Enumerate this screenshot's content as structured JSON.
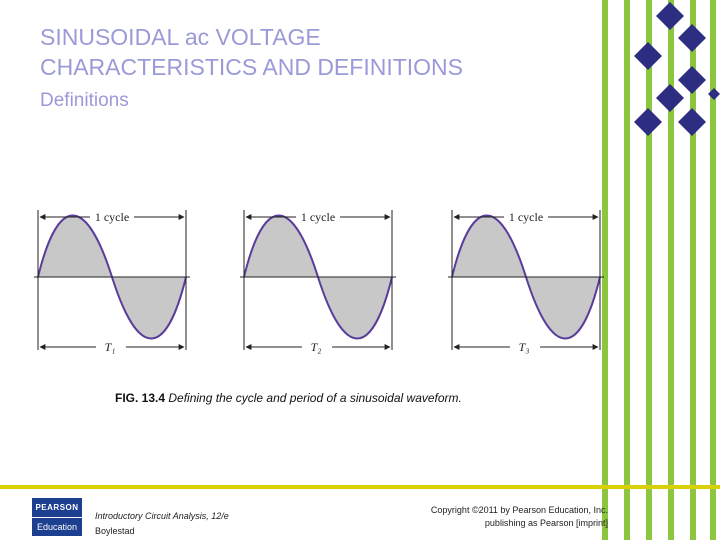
{
  "slide": {
    "title_line1": "SINUSOIDAL ac VOLTAGE",
    "title_line2": "CHARACTERISTICS AND DEFINITIONS",
    "subtitle": "Definitions"
  },
  "figure": {
    "panels": [
      {
        "cycle_label": "1 cycle",
        "period_label": "T₁"
      },
      {
        "cycle_label": "1 cycle",
        "period_label": "T₂"
      },
      {
        "cycle_label": "1 cycle",
        "period_label": "T₃"
      }
    ],
    "caption_prefix": "FIG. 13.4",
    "caption_text": "Defining the cycle and period of a sinusoidal waveform."
  },
  "footer": {
    "logo_top": "PEARSON",
    "logo_bottom": "Education",
    "book_title": "Introductory Circuit Analysis, 12/e",
    "book_author": "Boylestad",
    "copyright_line1": "Copyright ©2011 by Pearson Education, Inc.",
    "copyright_line2": "publishing as Pearson [imprint]"
  },
  "colors": {
    "title": "#9a9ad8",
    "stripe_green": "#8cc63f",
    "diamond_navy": "#2d2d82",
    "waveform_fill": "#c8c8c8",
    "footer_bar": "#d8d000"
  }
}
